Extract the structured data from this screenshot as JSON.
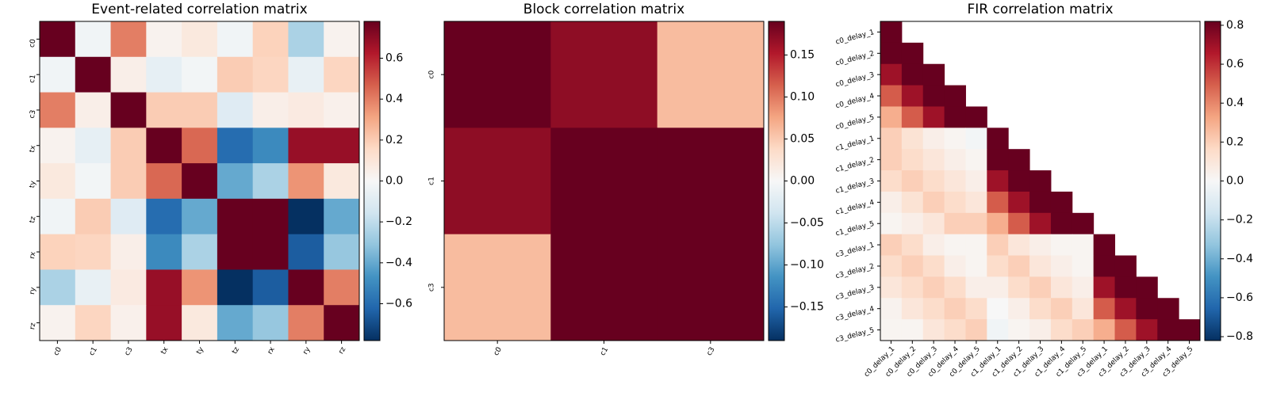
{
  "chart_data": [
    {
      "type": "heatmap",
      "title": "Event-related correlation matrix",
      "categories": [
        "c0",
        "c1",
        "c3",
        "tx",
        "ty",
        "tz",
        "rx",
        "ry",
        "rz"
      ],
      "values": [
        [
          0.78,
          -0.03,
          0.4,
          0.03,
          0.08,
          -0.03,
          0.18,
          -0.25,
          0.03
        ],
        [
          -0.03,
          0.78,
          0.05,
          -0.07,
          -0.02,
          0.2,
          0.17,
          -0.06,
          0.17
        ],
        [
          0.4,
          0.05,
          0.78,
          0.2,
          0.2,
          -0.1,
          0.05,
          0.07,
          0.04
        ],
        [
          0.03,
          -0.07,
          0.2,
          0.78,
          0.45,
          -0.6,
          -0.5,
          0.68,
          0.68
        ],
        [
          0.08,
          -0.02,
          0.2,
          0.45,
          0.78,
          -0.4,
          -0.25,
          0.35,
          0.08
        ],
        [
          -0.03,
          0.2,
          -0.1,
          -0.6,
          -0.4,
          0.78,
          0.78,
          -0.78,
          -0.4
        ],
        [
          0.18,
          0.17,
          0.05,
          -0.5,
          -0.25,
          0.78,
          0.78,
          -0.65,
          -0.3
        ],
        [
          -0.25,
          -0.06,
          0.07,
          0.68,
          0.35,
          -0.78,
          -0.65,
          0.78,
          0.4
        ],
        [
          0.03,
          0.17,
          0.04,
          0.68,
          0.08,
          -0.4,
          -0.3,
          0.4,
          0.78
        ]
      ],
      "clim": [
        -0.78,
        0.78
      ],
      "cticks": [
        {
          "value": -0.6,
          "label": "−0.6"
        },
        {
          "value": -0.4,
          "label": "−0.4"
        },
        {
          "value": -0.2,
          "label": "−0.2"
        },
        {
          "value": 0,
          "label": "0.0"
        },
        {
          "value": 0.2,
          "label": "0.2"
        },
        {
          "value": 0.4,
          "label": "0.4"
        },
        {
          "value": 0.6,
          "label": "0.6"
        }
      ],
      "colormap": [
        "#053061",
        "#2166ac",
        "#4393c3",
        "#92c5de",
        "#d1e5f0",
        "#f7f7f7",
        "#fddbc7",
        "#f4a582",
        "#d6604d",
        "#b2182b",
        "#67001f"
      ]
    },
    {
      "type": "heatmap",
      "title": "Block correlation matrix",
      "categories": [
        "c0",
        "c1",
        "c3"
      ],
      "values": [
        [
          0.19,
          0.17,
          0.06
        ],
        [
          0.17,
          0.19,
          0.19
        ],
        [
          0.06,
          0.19,
          0.19
        ]
      ],
      "clim": [
        -0.19,
        0.19
      ],
      "cticks": [
        {
          "value": -0.15,
          "label": "−0.15"
        },
        {
          "value": -0.1,
          "label": "−0.10"
        },
        {
          "value": -0.05,
          "label": "−0.05"
        },
        {
          "value": 0,
          "label": "0.00"
        },
        {
          "value": 0.05,
          "label": "0.05"
        },
        {
          "value": 0.1,
          "label": "0.10"
        },
        {
          "value": 0.15,
          "label": "0.15"
        }
      ],
      "colormap": [
        "#053061",
        "#2166ac",
        "#4393c3",
        "#92c5de",
        "#d1e5f0",
        "#f7f7f7",
        "#fddbc7",
        "#f4a582",
        "#d6604d",
        "#b2182b",
        "#67001f"
      ]
    },
    {
      "type": "heatmap",
      "title": "FIR correlation matrix",
      "categories": [
        "c0_delay_1",
        "c0_delay_2",
        "c0_delay_3",
        "c0_delay_4",
        "c0_delay_5",
        "c1_delay_1",
        "c1_delay_2",
        "c1_delay_3",
        "c1_delay_4",
        "c1_delay_5",
        "c3_delay_1",
        "c3_delay_2",
        "c3_delay_3",
        "c3_delay_4",
        "c3_delay_5"
      ],
      "values": [
        [
          0.82,
          null,
          null,
          null,
          null,
          null,
          null,
          null,
          null,
          null,
          null,
          null,
          null,
          null,
          null
        ],
        [
          0.82,
          0.82,
          null,
          null,
          null,
          null,
          null,
          null,
          null,
          null,
          null,
          null,
          null,
          null,
          null
        ],
        [
          0.7,
          0.82,
          0.82,
          null,
          null,
          null,
          null,
          null,
          null,
          null,
          null,
          null,
          null,
          null,
          null
        ],
        [
          0.5,
          0.7,
          0.82,
          0.82,
          null,
          null,
          null,
          null,
          null,
          null,
          null,
          null,
          null,
          null,
          null
        ],
        [
          0.3,
          0.5,
          0.7,
          0.82,
          0.82,
          null,
          null,
          null,
          null,
          null,
          null,
          null,
          null,
          null,
          null
        ],
        [
          0.2,
          0.12,
          0.05,
          0.02,
          -0.02,
          0.82,
          null,
          null,
          null,
          null,
          null,
          null,
          null,
          null,
          null
        ],
        [
          0.2,
          0.15,
          0.1,
          0.05,
          0.02,
          0.82,
          0.82,
          null,
          null,
          null,
          null,
          null,
          null,
          null,
          null
        ],
        [
          0.15,
          0.2,
          0.15,
          0.1,
          0.05,
          0.7,
          0.82,
          0.82,
          null,
          null,
          null,
          null,
          null,
          null,
          null
        ],
        [
          0.05,
          0.12,
          0.2,
          0.15,
          0.1,
          0.5,
          0.7,
          0.82,
          0.82,
          null,
          null,
          null,
          null,
          null,
          null
        ],
        [
          0.02,
          0.05,
          0.1,
          0.2,
          0.2,
          0.3,
          0.5,
          0.7,
          0.82,
          0.82,
          null,
          null,
          null,
          null,
          null
        ],
        [
          0.2,
          0.15,
          0.05,
          0.02,
          0.02,
          0.2,
          0.1,
          0.05,
          0.02,
          0.02,
          0.82,
          null,
          null,
          null,
          null
        ],
        [
          0.15,
          0.2,
          0.15,
          0.05,
          0.02,
          0.15,
          0.2,
          0.1,
          0.05,
          0.02,
          0.82,
          0.82,
          null,
          null,
          null
        ],
        [
          0.1,
          0.15,
          0.2,
          0.15,
          0.05,
          0.05,
          0.15,
          0.2,
          0.1,
          0.05,
          0.7,
          0.82,
          0.82,
          null,
          null
        ],
        [
          0.03,
          0.1,
          0.15,
          0.2,
          0.15,
          0,
          0.05,
          0.15,
          0.2,
          0.1,
          0.5,
          0.7,
          0.82,
          0.82,
          null
        ],
        [
          0.02,
          0.02,
          0.1,
          0.15,
          0.2,
          -0.03,
          0.02,
          0.05,
          0.15,
          0.2,
          0.3,
          0.5,
          0.7,
          0.82,
          0.82
        ]
      ],
      "clim": [
        -0.82,
        0.82
      ],
      "cticks": [
        {
          "value": -0.8,
          "label": "−0.8"
        },
        {
          "value": -0.6,
          "label": "−0.6"
        },
        {
          "value": -0.4,
          "label": "−0.4"
        },
        {
          "value": -0.2,
          "label": "−0.2"
        },
        {
          "value": 0,
          "label": "0.0"
        },
        {
          "value": 0.2,
          "label": "0.2"
        },
        {
          "value": 0.4,
          "label": "0.4"
        },
        {
          "value": 0.6,
          "label": "0.6"
        },
        {
          "value": 0.8,
          "label": "0.8"
        }
      ],
      "colormap": [
        "#053061",
        "#2166ac",
        "#4393c3",
        "#92c5de",
        "#d1e5f0",
        "#f7f7f7",
        "#fddbc7",
        "#f4a582",
        "#d6604d",
        "#b2182b",
        "#67001f"
      ]
    }
  ]
}
